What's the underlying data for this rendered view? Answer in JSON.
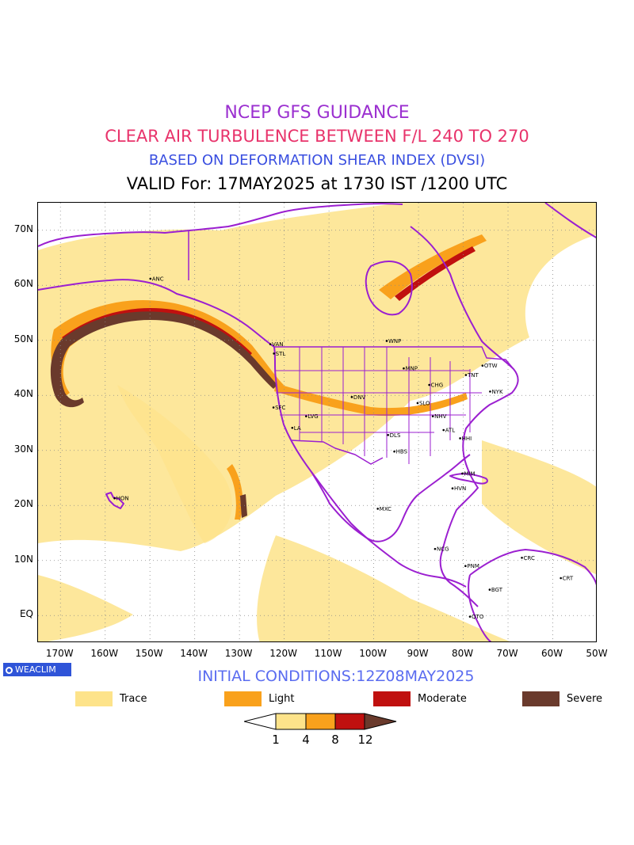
{
  "titles": {
    "line1": "NCEP GFS GUIDANCE",
    "line2": "CLEAR AIR TURBULENCE BETWEEN F/L 240 TO 270",
    "line3": "BASED ON DEFORMATION SHEAR INDEX (DVSI)",
    "line4": "VALID For: 17MAY2025 at 1730 IST /1200 UTC"
  },
  "axes": {
    "lat_labels": [
      "70N",
      "60N",
      "50N",
      "40N",
      "30N",
      "20N",
      "10N",
      "EQ"
    ],
    "lon_labels": [
      "170W",
      "160W",
      "150W",
      "140W",
      "130W",
      "120W",
      "110W",
      "100W",
      "90W",
      "80W",
      "70W",
      "60W",
      "50W"
    ],
    "lat_range": [
      -5,
      75
    ],
    "lon_range": [
      -175,
      -50
    ]
  },
  "places": [
    {
      "name": "ANC",
      "lon": -149.9,
      "lat": 61.2
    },
    {
      "name": "VAN",
      "lon": -123.1,
      "lat": 49.3
    },
    {
      "name": "STL",
      "lon": -122.3,
      "lat": 47.6
    },
    {
      "name": "WNP",
      "lon": -97.1,
      "lat": 49.9
    },
    {
      "name": "MNP",
      "lon": -93.3,
      "lat": 44.9
    },
    {
      "name": "OTW",
      "lon": -75.7,
      "lat": 45.4
    },
    {
      "name": "TNT",
      "lon": -79.4,
      "lat": 43.7
    },
    {
      "name": "CHG",
      "lon": -87.6,
      "lat": 41.9
    },
    {
      "name": "NYK",
      "lon": -74.0,
      "lat": 40.7
    },
    {
      "name": "SFC",
      "lon": -122.4,
      "lat": 37.8
    },
    {
      "name": "DNV",
      "lon": -104.9,
      "lat": 39.7
    },
    {
      "name": "SLO",
      "lon": -90.2,
      "lat": 38.6
    },
    {
      "name": "LVG",
      "lon": -115.1,
      "lat": 36.2
    },
    {
      "name": "NHV",
      "lon": -86.8,
      "lat": 36.2
    },
    {
      "name": "LA",
      "lon": -118.2,
      "lat": 34.1
    },
    {
      "name": "ATL",
      "lon": -84.4,
      "lat": 33.7
    },
    {
      "name": "DLS",
      "lon": -96.8,
      "lat": 32.8
    },
    {
      "name": "HHI",
      "lon": -80.7,
      "lat": 32.2
    },
    {
      "name": "HBS",
      "lon": -95.4,
      "lat": 29.8
    },
    {
      "name": "MIM",
      "lon": -80.2,
      "lat": 25.8
    },
    {
      "name": "HVN",
      "lon": -82.4,
      "lat": 23.1
    },
    {
      "name": "HON",
      "lon": -157.9,
      "lat": 21.3
    },
    {
      "name": "MXC",
      "lon": -99.1,
      "lat": 19.4
    },
    {
      "name": "NCG",
      "lon": -86.3,
      "lat": 12.1
    },
    {
      "name": "CRC",
      "lon": -66.9,
      "lat": 10.5
    },
    {
      "name": "PNM",
      "lon": -79.5,
      "lat": 9.0
    },
    {
      "name": "CRT",
      "lon": -58.2,
      "lat": 6.8
    },
    {
      "name": "BGT",
      "lon": -74.1,
      "lat": 4.7
    },
    {
      "name": "QTO",
      "lon": -78.5,
      "lat": -0.2
    }
  ],
  "logo": "WEACLIM",
  "initial_conditions": "INITIAL CONDITIONS:12Z08MAY2025",
  "legend": [
    {
      "label": "Trace",
      "color": "#fde38a"
    },
    {
      "label": "Light",
      "color": "#f9a11c"
    },
    {
      "label": "Moderate",
      "color": "#c0100f"
    },
    {
      "label": "Severe",
      "color": "#6a3a2c"
    }
  ],
  "colorbar": {
    "ticks": [
      "1",
      "4",
      "8",
      "12"
    ],
    "colors": [
      "#ffffff",
      "#fde38a",
      "#f9a11c",
      "#c0100f",
      "#6a3a2c"
    ]
  },
  "colors": {
    "boundary": "#9b1fd0",
    "trace": "#fde38a",
    "light": "#f9a11c",
    "moderate": "#c0100f",
    "severe": "#6a3a2c"
  }
}
